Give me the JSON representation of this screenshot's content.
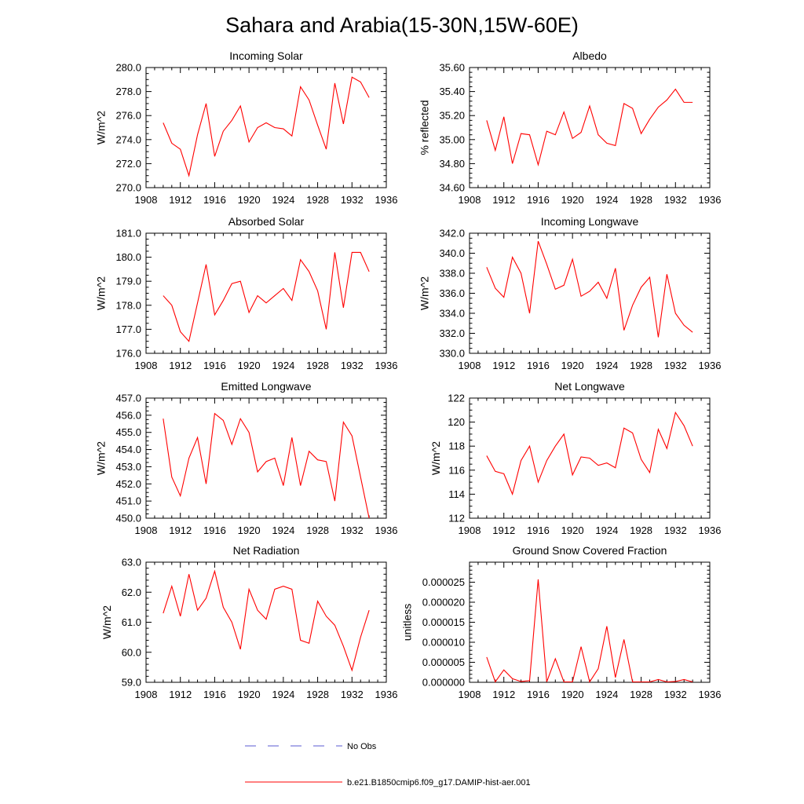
{
  "figure": {
    "title": "Sahara and Arabia(15-30N,15W-60E)",
    "colors": {
      "model": "#ff0000",
      "obs": "#5a5ad0"
    },
    "legend": [
      {
        "label": "No Obs",
        "style": "dashed",
        "color": "#5a5ad0"
      },
      {
        "label": "b.e21.B1850cmip6.f09_g17.DAMIP-hist-aer.001",
        "style": "solid",
        "color": "#ff0000"
      }
    ]
  },
  "chart_data": [
    {
      "type": "line",
      "title": "Incoming Solar",
      "ylabel": "W/m^2",
      "xlim": [
        1908,
        1936
      ],
      "ylim": [
        270,
        280
      ],
      "xticks": [
        "1908",
        "1912",
        "1916",
        "1920",
        "1924",
        "1928",
        "1932",
        "1936"
      ],
      "yticks": [
        "270.0",
        "272.0",
        "274.0",
        "276.0",
        "278.0",
        "280.0"
      ],
      "series": [
        {
          "color": "#ff0000",
          "x": [
            1910,
            1911,
            1912,
            1913,
            1914,
            1915,
            1916,
            1917,
            1918,
            1919,
            1920,
            1921,
            1922,
            1923,
            1924,
            1925,
            1926,
            1927,
            1928,
            1929,
            1930,
            1931,
            1932,
            1933,
            1934
          ],
          "y": [
            275.4,
            273.7,
            273.2,
            271.0,
            274.4,
            277.0,
            272.6,
            274.7,
            275.6,
            276.8,
            273.8,
            275.0,
            275.4,
            275.0,
            274.9,
            274.3,
            278.4,
            277.3,
            275.2,
            273.2,
            278.7,
            275.3,
            279.2,
            278.8,
            277.5
          ]
        }
      ]
    },
    {
      "type": "line",
      "title": "Albedo",
      "ylabel": "% reflected",
      "xlim": [
        1908,
        1936
      ],
      "ylim": [
        34.6,
        35.6
      ],
      "xticks": [
        "1908",
        "1912",
        "1916",
        "1920",
        "1924",
        "1928",
        "1932",
        "1936"
      ],
      "yticks": [
        "34.60",
        "34.80",
        "35.00",
        "35.20",
        "35.40",
        "35.60"
      ],
      "series": [
        {
          "color": "#ff0000",
          "x": [
            1910,
            1911,
            1912,
            1913,
            1914,
            1915,
            1916,
            1917,
            1918,
            1919,
            1920,
            1921,
            1922,
            1923,
            1924,
            1925,
            1926,
            1927,
            1928,
            1929,
            1930,
            1931,
            1932,
            1933,
            1934
          ],
          "y": [
            35.16,
            34.91,
            35.19,
            34.8,
            35.05,
            35.04,
            34.79,
            35.07,
            35.04,
            35.23,
            35.01,
            35.06,
            35.28,
            35.04,
            34.97,
            34.95,
            35.3,
            35.26,
            35.05,
            35.17,
            35.27,
            35.33,
            35.42,
            35.31,
            35.31
          ]
        }
      ]
    },
    {
      "type": "line",
      "title": "Absorbed Solar",
      "ylabel": "W/m^2",
      "xlim": [
        1908,
        1936
      ],
      "ylim": [
        176,
        181
      ],
      "xticks": [
        "1908",
        "1912",
        "1916",
        "1920",
        "1924",
        "1928",
        "1932",
        "1936"
      ],
      "yticks": [
        "176.0",
        "177.0",
        "178.0",
        "179.0",
        "180.0",
        "181.0"
      ],
      "series": [
        {
          "color": "#ff0000",
          "x": [
            1910,
            1911,
            1912,
            1913,
            1914,
            1915,
            1916,
            1917,
            1918,
            1919,
            1920,
            1921,
            1922,
            1923,
            1924,
            1925,
            1926,
            1927,
            1928,
            1929,
            1930,
            1931,
            1932,
            1933,
            1934
          ],
          "y": [
            178.4,
            178.0,
            176.9,
            176.5,
            178.1,
            179.7,
            177.6,
            178.2,
            178.9,
            179.0,
            177.7,
            178.4,
            178.1,
            178.4,
            178.7,
            178.2,
            179.9,
            179.4,
            178.6,
            177.0,
            180.2,
            177.9,
            180.2,
            180.2,
            179.4
          ]
        }
      ]
    },
    {
      "type": "line",
      "title": "Incoming Longwave",
      "ylabel": "W/m^2",
      "xlim": [
        1908,
        1936
      ],
      "ylim": [
        330,
        342
      ],
      "xticks": [
        "1908",
        "1912",
        "1916",
        "1920",
        "1924",
        "1928",
        "1932",
        "1936"
      ],
      "yticks": [
        "330.0",
        "332.0",
        "334.0",
        "336.0",
        "338.0",
        "340.0",
        "342.0"
      ],
      "series": [
        {
          "color": "#ff0000",
          "x": [
            1910,
            1911,
            1912,
            1913,
            1914,
            1915,
            1916,
            1917,
            1918,
            1919,
            1920,
            1921,
            1922,
            1923,
            1924,
            1925,
            1926,
            1927,
            1928,
            1929,
            1930,
            1931,
            1932,
            1933,
            1934
          ],
          "y": [
            338.6,
            336.5,
            335.6,
            339.6,
            338.0,
            334.0,
            341.2,
            338.9,
            336.4,
            336.8,
            339.4,
            335.7,
            336.2,
            337.1,
            335.5,
            338.5,
            332.3,
            334.8,
            336.6,
            337.6,
            331.6,
            337.9,
            334.0,
            332.8,
            332.1
          ]
        }
      ]
    },
    {
      "type": "line",
      "title": "Emitted Longwave",
      "ylabel": "W/m^2",
      "xlim": [
        1908,
        1936
      ],
      "ylim": [
        450,
        457
      ],
      "xticks": [
        "1908",
        "1912",
        "1916",
        "1920",
        "1924",
        "1928",
        "1932",
        "1936"
      ],
      "yticks": [
        "450.0",
        "451.0",
        "452.0",
        "453.0",
        "454.0",
        "455.0",
        "456.0",
        "457.0"
      ],
      "series": [
        {
          "color": "#ff0000",
          "x": [
            1910,
            1911,
            1912,
            1913,
            1914,
            1915,
            1916,
            1917,
            1918,
            1919,
            1920,
            1921,
            1922,
            1923,
            1924,
            1925,
            1926,
            1927,
            1928,
            1929,
            1930,
            1931,
            1932,
            1933,
            1934
          ],
          "y": [
            455.8,
            452.4,
            451.3,
            453.5,
            454.7,
            452.0,
            456.1,
            455.7,
            454.3,
            455.8,
            455.0,
            452.7,
            453.3,
            453.5,
            451.9,
            454.7,
            451.9,
            453.9,
            453.4,
            453.3,
            451.0,
            455.6,
            454.8,
            452.4,
            450.0
          ]
        }
      ]
    },
    {
      "type": "line",
      "title": "Net Longwave",
      "ylabel": "W/m^2",
      "xlim": [
        1908,
        1936
      ],
      "ylim": [
        112,
        122
      ],
      "xticks": [
        "1908",
        "1912",
        "1916",
        "1920",
        "1924",
        "1928",
        "1932",
        "1936"
      ],
      "yticks": [
        "112",
        "114",
        "116",
        "118",
        "120",
        "122"
      ],
      "series": [
        {
          "color": "#ff0000",
          "x": [
            1910,
            1911,
            1912,
            1913,
            1914,
            1915,
            1916,
            1917,
            1918,
            1919,
            1920,
            1921,
            1922,
            1923,
            1924,
            1925,
            1926,
            1927,
            1928,
            1929,
            1930,
            1931,
            1932,
            1933,
            1934
          ],
          "y": [
            117.2,
            115.9,
            115.7,
            114.0,
            116.8,
            118.0,
            115.0,
            116.8,
            118.0,
            119.0,
            115.6,
            117.1,
            117.0,
            116.4,
            116.6,
            116.2,
            119.5,
            119.1,
            116.9,
            115.8,
            119.4,
            117.8,
            120.8,
            119.7,
            118.0
          ]
        }
      ]
    },
    {
      "type": "line",
      "title": "Net Radiation",
      "ylabel": "W/m^2",
      "xlim": [
        1908,
        1936
      ],
      "ylim": [
        59,
        63
      ],
      "xticks": [
        "1908",
        "1912",
        "1916",
        "1920",
        "1924",
        "1928",
        "1932",
        "1936"
      ],
      "yticks": [
        "59.0",
        "60.0",
        "61.0",
        "62.0",
        "63.0"
      ],
      "series": [
        {
          "color": "#ff0000",
          "x": [
            1910,
            1911,
            1912,
            1913,
            1914,
            1915,
            1916,
            1917,
            1918,
            1919,
            1920,
            1921,
            1922,
            1923,
            1924,
            1925,
            1926,
            1927,
            1928,
            1929,
            1930,
            1931,
            1932,
            1933,
            1934
          ],
          "y": [
            61.3,
            62.2,
            61.2,
            62.6,
            61.4,
            61.8,
            62.7,
            61.5,
            61.0,
            60.1,
            62.1,
            61.4,
            61.1,
            62.1,
            62.2,
            62.1,
            60.4,
            60.3,
            61.7,
            61.2,
            60.9,
            60.2,
            59.4,
            60.5,
            61.4
          ]
        }
      ]
    },
    {
      "type": "line",
      "title": "Ground Snow Covered Fraction",
      "ylabel": "unitless",
      "xlim": [
        1908,
        1936
      ],
      "ylim": [
        0,
        3e-05
      ],
      "xticks": [
        "1908",
        "1912",
        "1916",
        "1920",
        "1924",
        "1928",
        "1932",
        "1936"
      ],
      "yticks": [
        "0.000000",
        "0.000005",
        "0.000010",
        "0.000015",
        "0.000020",
        "0.000025"
      ],
      "series": [
        {
          "color": "#ff0000",
          "x": [
            1910,
            1911,
            1912,
            1913,
            1914,
            1915,
            1916,
            1917,
            1918,
            1919,
            1920,
            1921,
            1922,
            1923,
            1924,
            1925,
            1926,
            1927,
            1928,
            1929,
            1930,
            1931,
            1932,
            1933,
            1934
          ],
          "y": [
            6.3e-06,
            1e-07,
            3.1e-06,
            9e-07,
            2e-07,
            4e-07,
            2.57e-05,
            1e-07,
            5.9e-06,
            1e-07,
            1e-07,
            8.9e-06,
            1e-07,
            3.4e-06,
            1.4e-05,
            1.2e-06,
            1.07e-05,
            1e-07,
            1e-07,
            1e-07,
            7e-07,
            1e-07,
            2e-07,
            7e-07,
            1e-07
          ]
        }
      ]
    }
  ]
}
